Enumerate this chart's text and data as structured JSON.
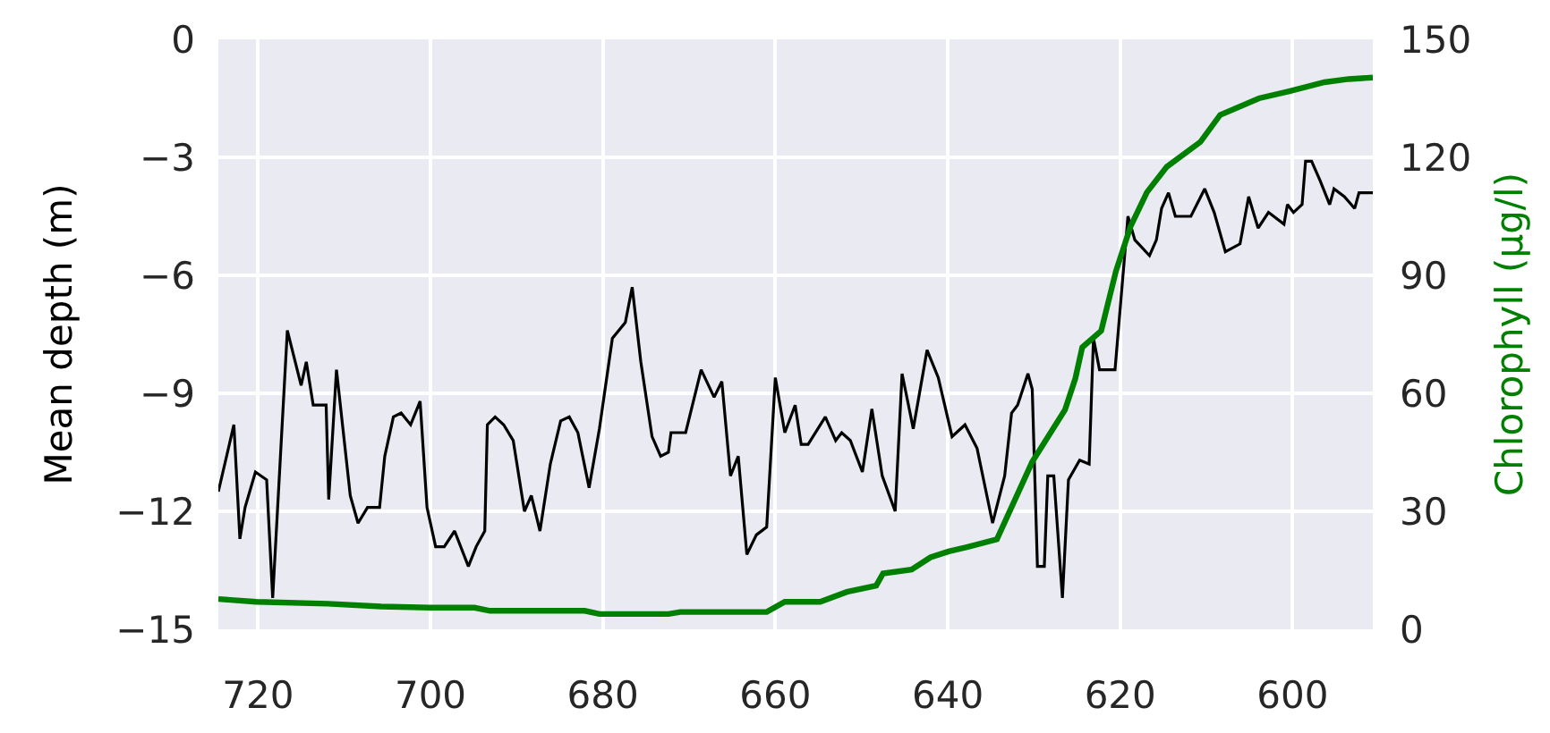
{
  "chart_data": {
    "type": "line",
    "ylabel": "Mean depth (m)",
    "y2label": "Chlorophyll (µg/l)",
    "xlim": [
      724.6,
      590.7
    ],
    "xticks": [
      720,
      700,
      680,
      660,
      640,
      620,
      600
    ],
    "ylim": [
      -15,
      0
    ],
    "yticks": [
      -15,
      -12,
      -9,
      -6,
      -3,
      0
    ],
    "y2lim": [
      0,
      150
    ],
    "y2ticks": [
      0,
      30,
      60,
      90,
      120,
      150
    ],
    "grid": true,
    "series": [
      {
        "color": "#000000",
        "x": [
          724.6,
          722.8,
          722.1,
          721.5,
          720.3,
          719.0,
          718.3,
          716.6,
          715.0,
          714.4,
          713.6,
          712.1,
          711.8,
          710.9,
          710.0,
          709.3,
          708.4,
          707.3,
          705.9,
          705.3,
          704.3,
          703.4,
          702.3,
          701.2,
          700.4,
          699.4,
          698.4,
          697.2,
          695.6,
          694.7,
          693.7,
          693.4,
          692.5,
          691.5,
          690.4,
          689.1,
          688.3,
          687.3,
          686.1,
          684.9,
          683.9,
          682.9,
          681.6,
          680.4,
          678.9,
          677.4,
          676.6,
          675.6,
          674.3,
          673.3,
          672.4,
          672.1,
          670.4,
          668.6,
          667.1,
          666.2,
          665.2,
          664.3,
          663.3,
          662.2,
          661.0,
          660.0,
          658.9,
          657.7,
          657.0,
          656.2,
          654.2,
          653.0,
          652.3,
          651.3,
          649.9,
          648.8,
          647.6,
          646.1,
          645.3,
          644.0,
          642.4,
          641.1,
          639.5,
          638.0,
          636.6,
          634.8,
          633.4,
          632.6,
          631.9,
          630.7,
          630.2,
          629.6,
          628.8,
          628.4,
          627.7,
          626.7,
          626.0,
          624.7,
          623.6,
          623.1,
          622.4,
          620.6,
          619.1,
          618.3,
          616.6,
          615.8,
          615.2,
          614.4,
          613.6,
          611.8,
          610.2,
          609.1,
          607.8,
          606.1,
          605.1,
          604.0,
          602.8,
          601.0,
          600.6,
          599.9,
          598.9,
          598.5,
          597.8,
          596.8,
          595.7,
          595.2,
          594.0,
          592.8,
          592.3,
          590.7
        ],
        "values": [
          -11.5,
          -9.8,
          -12.7,
          -11.9,
          -11.0,
          -11.2,
          -14.2,
          -7.4,
          -8.8,
          -8.2,
          -9.3,
          -9.3,
          -11.7,
          -8.4,
          -10.2,
          -11.6,
          -12.3,
          -11.9,
          -11.9,
          -10.6,
          -9.6,
          -9.5,
          -9.8,
          -9.2,
          -11.9,
          -12.9,
          -12.9,
          -12.5,
          -13.4,
          -12.9,
          -12.5,
          -9.8,
          -9.6,
          -9.8,
          -10.2,
          -12.0,
          -11.6,
          -12.5,
          -10.8,
          -9.7,
          -9.6,
          -10.0,
          -11.4,
          -9.9,
          -7.6,
          -7.2,
          -6.3,
          -8.2,
          -10.1,
          -10.6,
          -10.5,
          -10.0,
          -10.0,
          -8.4,
          -9.1,
          -8.7,
          -11.1,
          -10.6,
          -13.1,
          -12.6,
          -12.4,
          -8.6,
          -10.0,
          -9.3,
          -10.3,
          -10.3,
          -9.6,
          -10.2,
          -10.0,
          -10.2,
          -11.0,
          -9.4,
          -11.1,
          -12.0,
          -8.5,
          -9.9,
          -7.9,
          -8.6,
          -10.1,
          -9.8,
          -10.4,
          -12.3,
          -11.1,
          -9.5,
          -9.3,
          -8.5,
          -8.9,
          -13.4,
          -13.4,
          -11.1,
          -11.1,
          -14.2,
          -11.2,
          -10.7,
          -10.8,
          -7.6,
          -8.4,
          -8.4,
          -4.5,
          -5.1,
          -5.5,
          -5.1,
          -4.3,
          -3.9,
          -4.5,
          -4.5,
          -3.8,
          -4.4,
          -5.4,
          -5.2,
          -4.0,
          -4.8,
          -4.4,
          -4.7,
          -4.2,
          -4.4,
          -4.2,
          -3.1,
          -3.1,
          -3.6,
          -4.2,
          -3.8,
          -4.0,
          -4.3,
          -3.9,
          -3.9
        ]
      },
      {
        "color": "#008000",
        "axis": "y2",
        "x": [
          724.6,
          720.2,
          711.9,
          705.7,
          700.1,
          694.9,
          693.1,
          682.1,
          680.4,
          672.4,
          671.0,
          661.0,
          658.9,
          654.8,
          651.7,
          648.3,
          647.5,
          644.2,
          642.0,
          639.9,
          637.8,
          634.3,
          630.2,
          626.4,
          625.2,
          624.4,
          622.2,
          620.5,
          618.8,
          616.9,
          614.6,
          610.7,
          608.4,
          603.9,
          600.4,
          596.3,
          593.5,
          590.7
        ],
        "values": [
          7.7,
          7.0,
          6.5,
          5.8,
          5.5,
          5.5,
          4.7,
          4.7,
          3.9,
          3.9,
          4.4,
          4.4,
          7.0,
          7.0,
          9.5,
          11.1,
          14.2,
          15.2,
          18.3,
          19.8,
          20.9,
          22.9,
          42.6,
          55.8,
          63.8,
          71.7,
          75.9,
          91.0,
          102.4,
          111.1,
          117.6,
          123.9,
          130.8,
          135.0,
          136.8,
          139.1,
          139.9,
          140.3
        ]
      }
    ]
  }
}
